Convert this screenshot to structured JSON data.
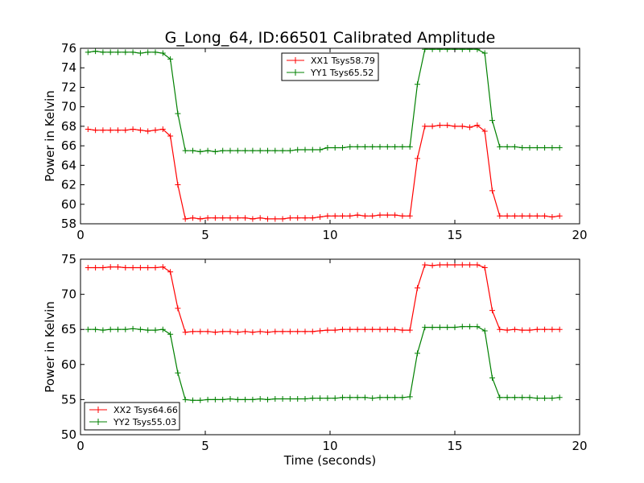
{
  "title": "G_Long_64, ID:66501 Calibrated Amplitude",
  "chart_data": [
    {
      "type": "line",
      "xlabel": "",
      "ylabel": "Power in Kelvin",
      "xlim": [
        0,
        20
      ],
      "ylim": [
        58,
        76
      ],
      "xticks": [
        "0",
        "5",
        "10",
        "15",
        "20"
      ],
      "yticks": [
        "58",
        "60",
        "62",
        "64",
        "66",
        "68",
        "70",
        "72",
        "74",
        "76"
      ],
      "legend": "top-center",
      "grid": false,
      "series": [
        {
          "name": "XX1 Tsys58.79",
          "color": "#ff0000",
          "x": [
            0.3,
            0.6,
            0.9,
            1.2,
            1.5,
            1.8,
            2.1,
            2.4,
            2.7,
            3.0,
            3.3,
            3.6,
            3.9,
            4.2,
            4.5,
            4.8,
            5.1,
            5.4,
            5.7,
            6.0,
            6.3,
            6.6,
            6.9,
            7.2,
            7.5,
            7.8,
            8.1,
            8.4,
            8.7,
            9.0,
            9.3,
            9.6,
            9.9,
            10.2,
            10.5,
            10.8,
            11.1,
            11.4,
            11.7,
            12.0,
            12.3,
            12.6,
            12.9,
            13.2,
            13.5,
            13.8,
            14.1,
            14.4,
            14.7,
            15.0,
            15.3,
            15.6,
            15.9,
            16.2,
            16.5,
            16.8,
            17.1,
            17.4,
            17.7,
            18.0,
            18.3,
            18.6,
            18.9,
            19.2
          ],
          "y": [
            67.7,
            67.6,
            67.6,
            67.6,
            67.6,
            67.6,
            67.7,
            67.6,
            67.5,
            67.6,
            67.7,
            67.0,
            62.0,
            58.5,
            58.6,
            58.5,
            58.6,
            58.6,
            58.6,
            58.6,
            58.6,
            58.6,
            58.5,
            58.6,
            58.5,
            58.5,
            58.5,
            58.6,
            58.6,
            58.6,
            58.6,
            58.7,
            58.8,
            58.8,
            58.8,
            58.8,
            58.9,
            58.8,
            58.8,
            58.9,
            58.9,
            58.9,
            58.8,
            58.8,
            64.7,
            68.0,
            68.0,
            68.1,
            68.1,
            68.0,
            68.0,
            67.9,
            68.1,
            67.5,
            61.4,
            58.8,
            58.8,
            58.8,
            58.8,
            58.8,
            58.8,
            58.8,
            58.7,
            58.8
          ]
        },
        {
          "name": "YY1 Tsys65.52",
          "color": "#008000",
          "x": [
            0.3,
            0.6,
            0.9,
            1.2,
            1.5,
            1.8,
            2.1,
            2.4,
            2.7,
            3.0,
            3.3,
            3.6,
            3.9,
            4.2,
            4.5,
            4.8,
            5.1,
            5.4,
            5.7,
            6.0,
            6.3,
            6.6,
            6.9,
            7.2,
            7.5,
            7.8,
            8.1,
            8.4,
            8.7,
            9.0,
            9.3,
            9.6,
            9.9,
            10.2,
            10.5,
            10.8,
            11.1,
            11.4,
            11.7,
            12.0,
            12.3,
            12.6,
            12.9,
            13.2,
            13.5,
            13.8,
            14.1,
            14.4,
            14.7,
            15.0,
            15.3,
            15.6,
            15.9,
            16.2,
            16.5,
            16.8,
            17.1,
            17.4,
            17.7,
            18.0,
            18.3,
            18.6,
            18.9,
            19.2
          ],
          "y": [
            75.6,
            75.7,
            75.6,
            75.6,
            75.6,
            75.6,
            75.6,
            75.5,
            75.6,
            75.6,
            75.5,
            74.9,
            69.3,
            65.5,
            65.5,
            65.4,
            65.5,
            65.4,
            65.5,
            65.5,
            65.5,
            65.5,
            65.5,
            65.5,
            65.5,
            65.5,
            65.5,
            65.5,
            65.6,
            65.6,
            65.6,
            65.6,
            65.8,
            65.8,
            65.8,
            65.9,
            65.9,
            65.9,
            65.9,
            65.9,
            65.9,
            65.9,
            65.9,
            65.9,
            72.3,
            75.9,
            75.9,
            75.9,
            75.9,
            75.9,
            75.9,
            75.9,
            75.9,
            75.5,
            68.6,
            65.9,
            65.9,
            65.9,
            65.8,
            65.8,
            65.8,
            65.8,
            65.8,
            65.8
          ]
        }
      ]
    },
    {
      "type": "line",
      "xlabel": "Time (seconds)",
      "ylabel": "Power in Kelvin",
      "xlim": [
        0,
        20
      ],
      "ylim": [
        50,
        75
      ],
      "xticks": [
        "0",
        "5",
        "10",
        "15",
        "20"
      ],
      "yticks": [
        "50",
        "55",
        "60",
        "65",
        "70",
        "75"
      ],
      "legend": "bottom-left",
      "grid": false,
      "series": [
        {
          "name": "XX2 Tsys64.66",
          "color": "#ff0000",
          "x": [
            0.3,
            0.6,
            0.9,
            1.2,
            1.5,
            1.8,
            2.1,
            2.4,
            2.7,
            3.0,
            3.3,
            3.6,
            3.9,
            4.2,
            4.5,
            4.8,
            5.1,
            5.4,
            5.7,
            6.0,
            6.3,
            6.6,
            6.9,
            7.2,
            7.5,
            7.8,
            8.1,
            8.4,
            8.7,
            9.0,
            9.3,
            9.6,
            9.9,
            10.2,
            10.5,
            10.8,
            11.1,
            11.4,
            11.7,
            12.0,
            12.3,
            12.6,
            12.9,
            13.2,
            13.5,
            13.8,
            14.1,
            14.4,
            14.7,
            15.0,
            15.3,
            15.6,
            15.9,
            16.2,
            16.5,
            16.8,
            17.1,
            17.4,
            17.7,
            18.0,
            18.3,
            18.6,
            18.9,
            19.2
          ],
          "y": [
            73.8,
            73.8,
            73.8,
            73.9,
            73.9,
            73.8,
            73.8,
            73.8,
            73.8,
            73.8,
            73.9,
            73.2,
            68.0,
            64.6,
            64.7,
            64.7,
            64.7,
            64.6,
            64.7,
            64.7,
            64.6,
            64.7,
            64.6,
            64.7,
            64.6,
            64.7,
            64.7,
            64.7,
            64.7,
            64.7,
            64.7,
            64.8,
            64.9,
            64.9,
            65.0,
            65.0,
            65.0,
            65.0,
            65.0,
            65.0,
            65.0,
            65.0,
            64.9,
            64.9,
            70.9,
            74.2,
            74.1,
            74.2,
            74.2,
            74.2,
            74.2,
            74.2,
            74.2,
            73.8,
            67.7,
            65.0,
            64.9,
            65.0,
            64.9,
            64.9,
            65.0,
            65.0,
            65.0,
            65.0
          ]
        },
        {
          "name": "YY2 Tsys55.03",
          "color": "#008000",
          "x": [
            0.3,
            0.6,
            0.9,
            1.2,
            1.5,
            1.8,
            2.1,
            2.4,
            2.7,
            3.0,
            3.3,
            3.6,
            3.9,
            4.2,
            4.5,
            4.8,
            5.1,
            5.4,
            5.7,
            6.0,
            6.3,
            6.6,
            6.9,
            7.2,
            7.5,
            7.8,
            8.1,
            8.4,
            8.7,
            9.0,
            9.3,
            9.6,
            9.9,
            10.2,
            10.5,
            10.8,
            11.1,
            11.4,
            11.7,
            12.0,
            12.3,
            12.6,
            12.9,
            13.2,
            13.5,
            13.8,
            14.1,
            14.4,
            14.7,
            15.0,
            15.3,
            15.6,
            15.9,
            16.2,
            16.5,
            16.8,
            17.1,
            17.4,
            17.7,
            18.0,
            18.3,
            18.6,
            18.9,
            19.2
          ],
          "y": [
            65.0,
            65.0,
            64.9,
            65.0,
            65.0,
            65.0,
            65.1,
            65.0,
            64.9,
            64.9,
            65.0,
            64.3,
            58.8,
            55.0,
            54.9,
            54.9,
            55.0,
            55.0,
            55.0,
            55.1,
            55.0,
            55.0,
            55.0,
            55.1,
            55.0,
            55.1,
            55.1,
            55.1,
            55.1,
            55.1,
            55.2,
            55.2,
            55.2,
            55.2,
            55.3,
            55.3,
            55.3,
            55.3,
            55.2,
            55.3,
            55.3,
            55.3,
            55.3,
            55.4,
            61.6,
            65.3,
            65.3,
            65.3,
            65.3,
            65.3,
            65.4,
            65.4,
            65.4,
            64.8,
            58.1,
            55.3,
            55.3,
            55.3,
            55.3,
            55.3,
            55.2,
            55.2,
            55.2,
            55.3
          ]
        }
      ]
    }
  ]
}
